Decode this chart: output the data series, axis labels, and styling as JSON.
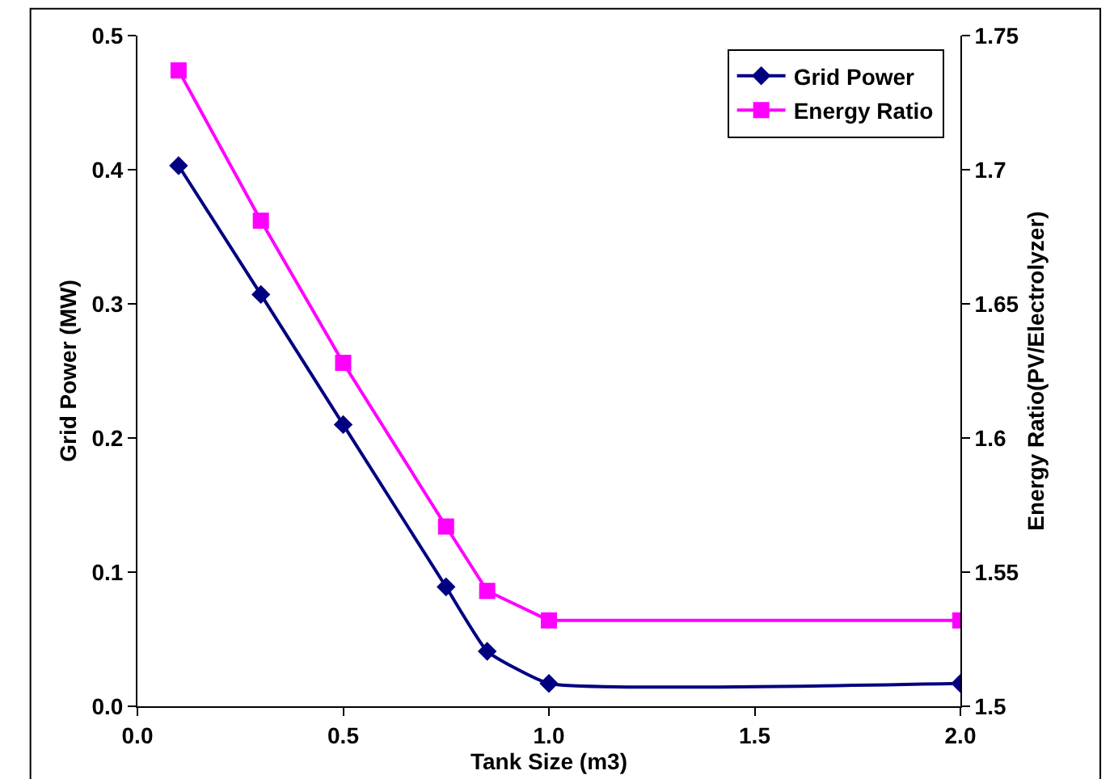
{
  "chart_data": {
    "type": "line",
    "xlabel": "Tank Size (m3)",
    "ylabel": "Grid Power (MW)",
    "y2label": "Energy Ratio(PV/Electrolyzer)",
    "x": [
      0.1,
      0.3,
      0.5,
      0.75,
      0.85,
      1.0,
      2.0
    ],
    "series": [
      {
        "name": "Grid Power",
        "color": "#000080",
        "marker": "diamond",
        "values": [
          0.403,
          0.307,
          0.21,
          0.089,
          0.041,
          0.017,
          0.017
        ]
      },
      {
        "name": "Energy Ratio",
        "color": "#ff00ff",
        "marker": "square",
        "axis": "y2",
        "values": [
          1.737,
          1.681,
          1.628,
          1.567,
          1.543,
          1.532,
          1.532
        ]
      }
    ],
    "xlim": [
      0,
      2
    ],
    "xticks": [
      {
        "value": 0,
        "label": "0.0"
      },
      {
        "value": 0.5,
        "label": "0.5"
      },
      {
        "value": 1,
        "label": "1.0"
      },
      {
        "value": 1.5,
        "label": "1.5"
      },
      {
        "value": 2,
        "label": "2.0"
      }
    ],
    "ylim": [
      0,
      0.5
    ],
    "yticks": [
      {
        "value": 0,
        "label": "0.0"
      },
      0.1,
      0.2,
      0.3,
      0.4,
      0.5
    ],
    "y2lim": [
      1.5,
      1.75
    ],
    "y2ticks": [
      1.5,
      1.55,
      1.6,
      1.65,
      1.7,
      1.75
    ],
    "grid": false,
    "legend": "top right"
  }
}
